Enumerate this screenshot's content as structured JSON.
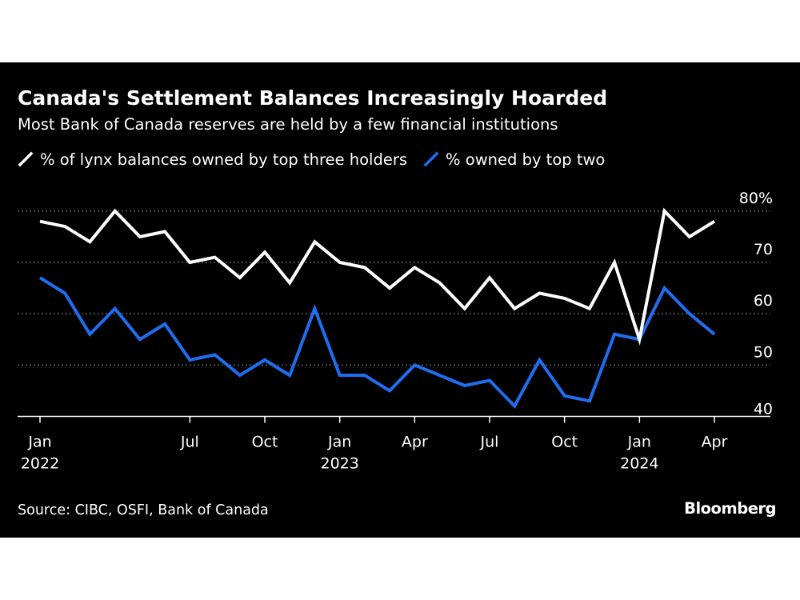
{
  "title": "Canada's Settlement Balances Increasingly Hoarded",
  "subtitle": "Most Bank of Canada reserves are held by a few financial institutions",
  "source": "Source: CIBC, OSFI, Bank of Canada",
  "brand": "Bloomberg",
  "colors": {
    "background": "#000000",
    "series_top_three": "#ffffff",
    "series_top_two": "#1f6ef0",
    "grid": "#8a8a8a",
    "axis": "#ffffff"
  },
  "chart_data": {
    "type": "line",
    "x": [
      "2022-01",
      "2022-02",
      "2022-03",
      "2022-04",
      "2022-05",
      "2022-06",
      "2022-07",
      "2022-08",
      "2022-09",
      "2022-10",
      "2022-11",
      "2022-12",
      "2023-01",
      "2023-02",
      "2023-03",
      "2023-04",
      "2023-05",
      "2023-06",
      "2023-07",
      "2023-08",
      "2023-09",
      "2023-10",
      "2023-11",
      "2023-12",
      "2024-01",
      "2024-02",
      "2024-03",
      "2024-04",
      "2024-05"
    ],
    "series": [
      {
        "name": "% of lynx balances owned by top three holders",
        "values": [
          78,
          77,
          74,
          80,
          75,
          76,
          70,
          71,
          67,
          72,
          66,
          74,
          70,
          69,
          65,
          69,
          66,
          61,
          67,
          61,
          64,
          63,
          61,
          70,
          55,
          80,
          75,
          78,
          null
        ]
      },
      {
        "name": "% owned by top two",
        "values": [
          67,
          64,
          56,
          61,
          55,
          58,
          51,
          52,
          48,
          51,
          48,
          61,
          48,
          48,
          45,
          50,
          48,
          46,
          47,
          42,
          51,
          44,
          43,
          56,
          55,
          65,
          60,
          56,
          null
        ]
      }
    ],
    "y_ticks": [
      "80%",
      "70",
      "60",
      "50",
      "40"
    ],
    "y_tick_values": [
      80,
      70,
      60,
      50,
      40
    ],
    "ylim": [
      38.2,
      82
    ],
    "x_tick_labels": [
      {
        "month": "2022-01",
        "label": "Jan",
        "year": "2022"
      },
      {
        "month": "2022-07",
        "label": "Jul",
        "year": ""
      },
      {
        "month": "2022-10",
        "label": "Oct",
        "year": ""
      },
      {
        "month": "2023-01",
        "label": "Jan",
        "year": "2023"
      },
      {
        "month": "2023-04",
        "label": "Apr",
        "year": ""
      },
      {
        "month": "2023-07",
        "label": "Jul",
        "year": ""
      },
      {
        "month": "2023-10",
        "label": "Oct",
        "year": ""
      },
      {
        "month": "2024-01",
        "label": "Jan",
        "year": "2024"
      },
      {
        "month": "2024-04",
        "label": "Apr",
        "year": ""
      }
    ],
    "grid": true,
    "legend_position": "top-left",
    "y_axis_side": "right"
  }
}
